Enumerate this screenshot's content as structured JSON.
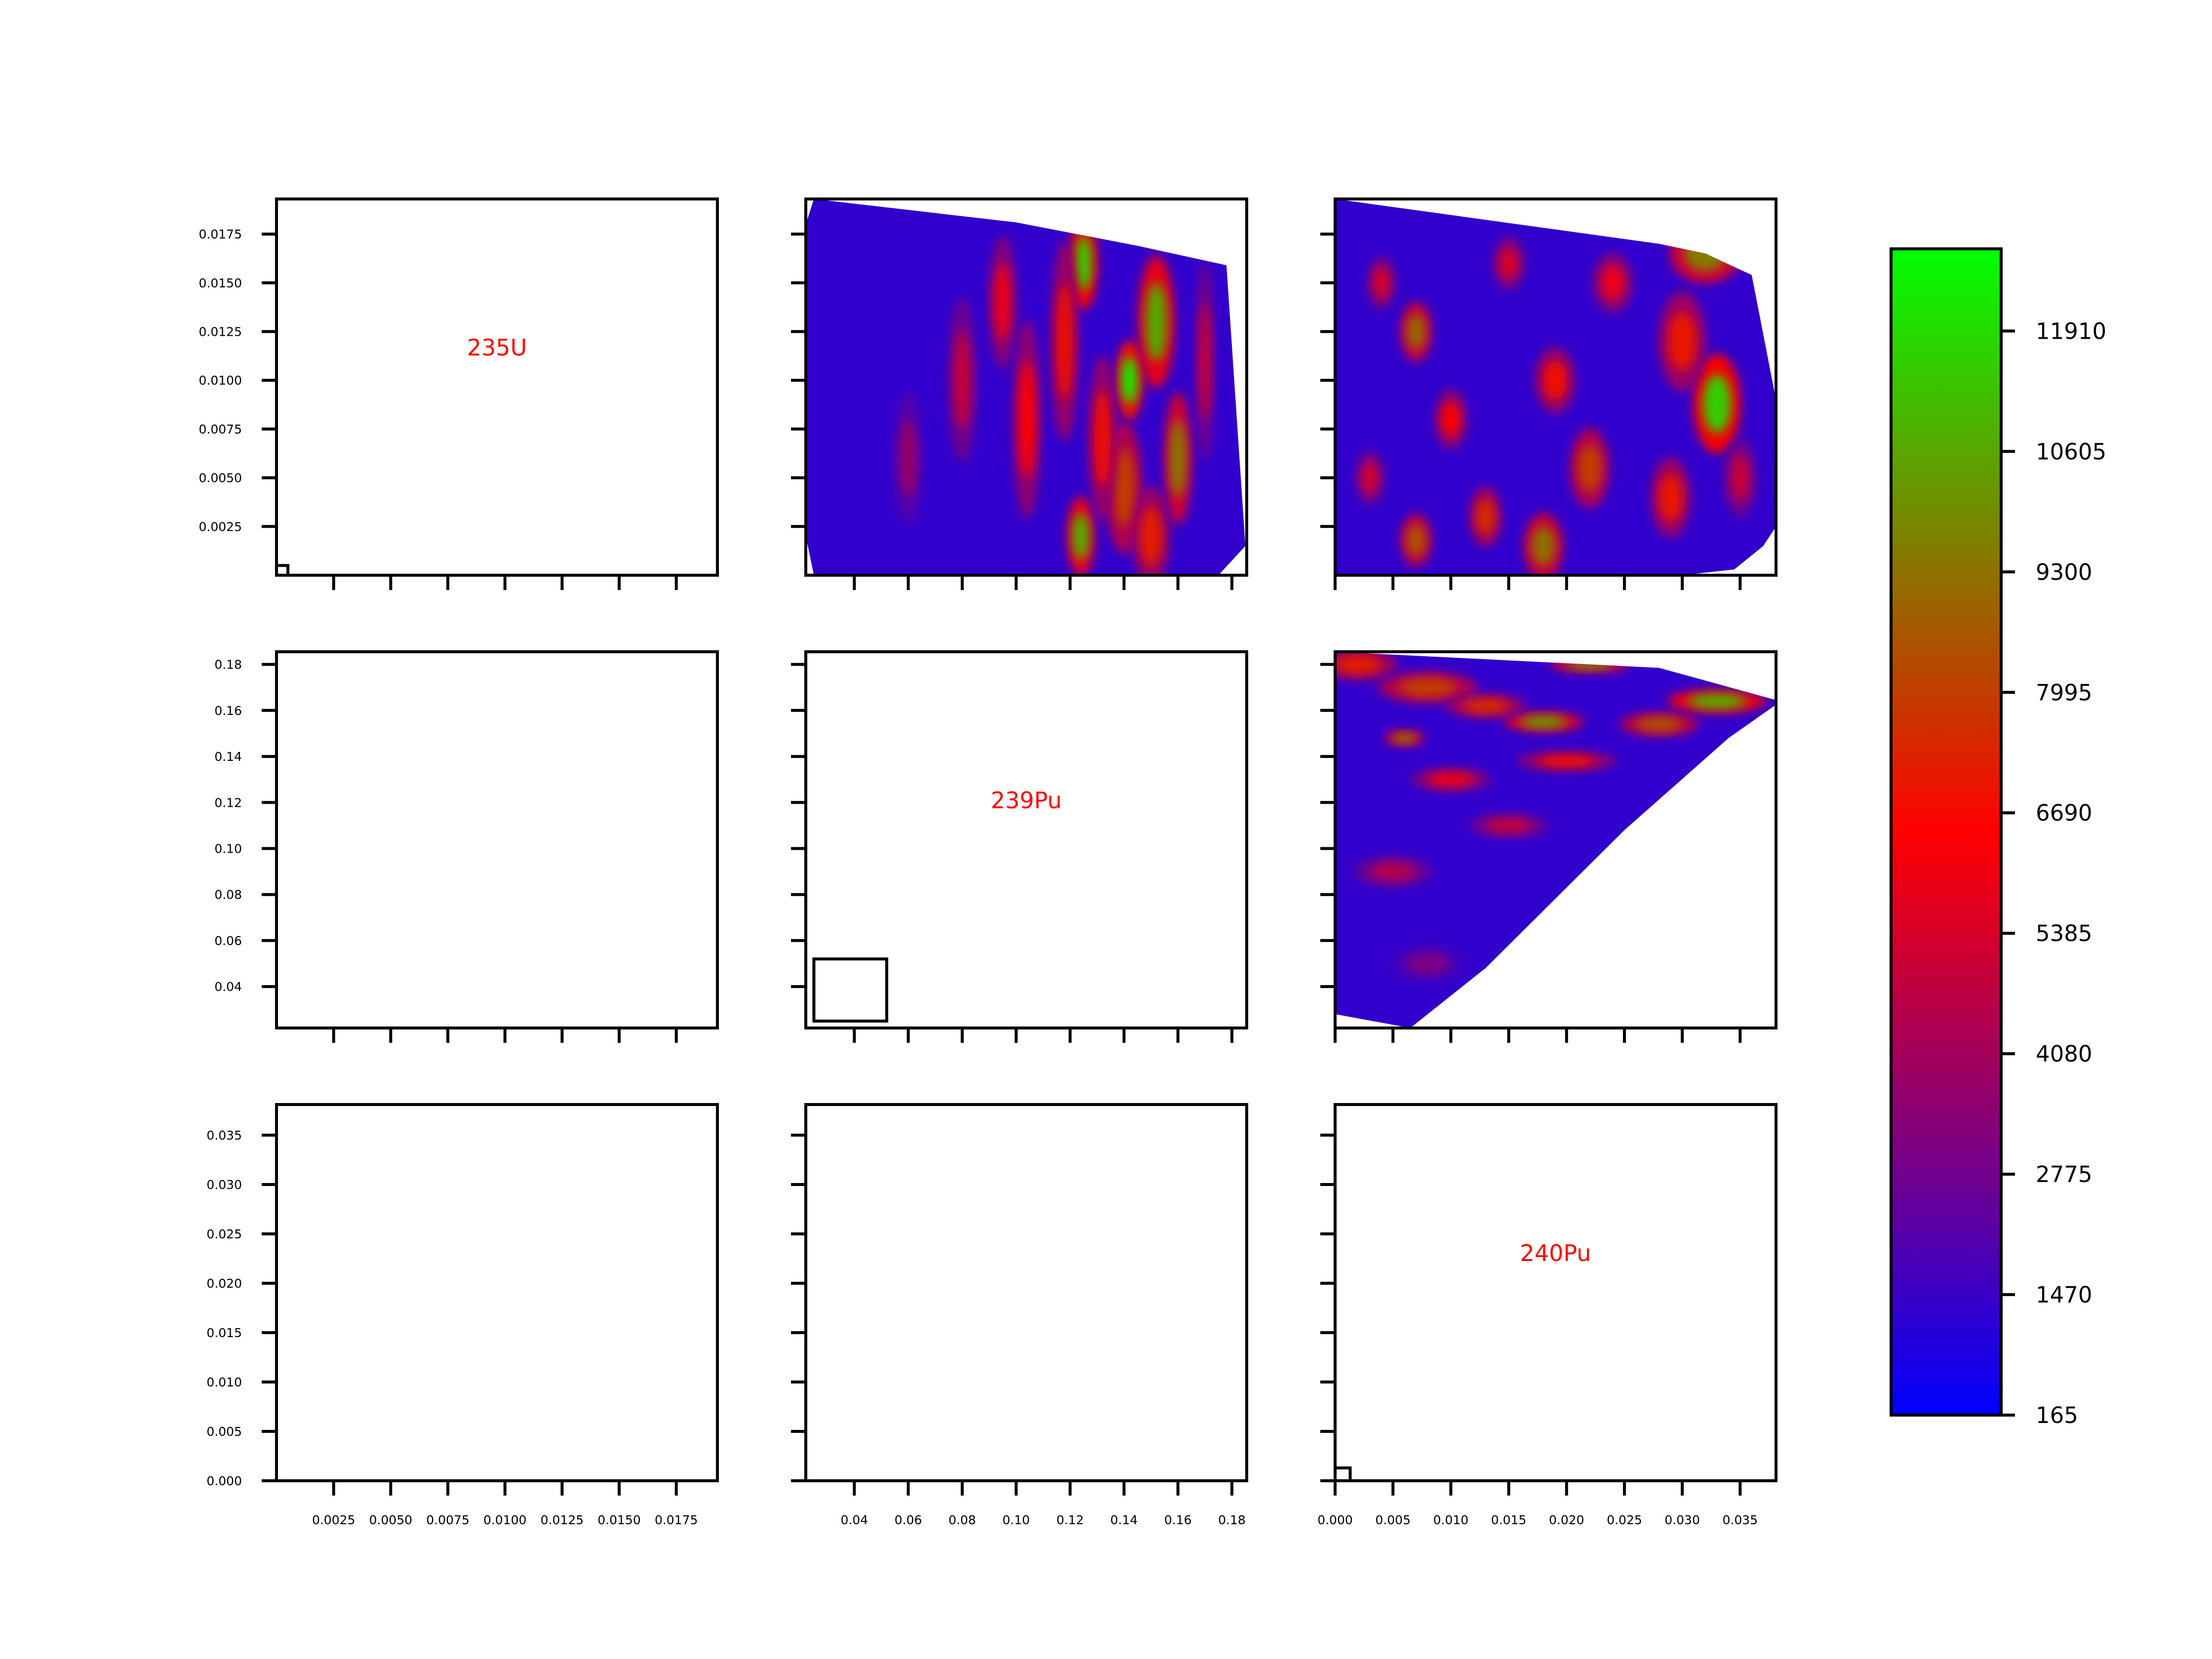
{
  "colors": {
    "axis": "#000000",
    "label": "#ff0000",
    "colormap": [
      "#0000ff",
      "#6f0090",
      "#ff0000",
      "#00ff00"
    ]
  },
  "chart_data": {
    "type": "pairplot-contour",
    "nuclides": [
      "235U",
      "239Pu",
      "240Pu"
    ],
    "axes": {
      "235U": {
        "range": [
          0.0,
          0.0193
        ],
        "ticks": [
          "0.0025",
          "0.0050",
          "0.0075",
          "0.0100",
          "0.0125",
          "0.0150",
          "0.0175"
        ],
        "tick_values": [
          0.0025,
          0.005,
          0.0075,
          0.01,
          0.0125,
          0.015,
          0.0175
        ]
      },
      "239Pu": {
        "range": [
          0.022,
          0.1855
        ],
        "ticks": [
          "0.04",
          "0.06",
          "0.08",
          "0.10",
          "0.12",
          "0.14",
          "0.16",
          "0.18"
        ],
        "tick_values": [
          0.04,
          0.06,
          0.08,
          0.1,
          0.12,
          0.14,
          0.16,
          0.18
        ]
      },
      "240Pu": {
        "range": [
          0.0,
          0.0381
        ],
        "ticks": [
          "0.000",
          "0.005",
          "0.010",
          "0.015",
          "0.020",
          "0.025",
          "0.030",
          "0.035"
        ],
        "tick_values": [
          0.0,
          0.005,
          0.01,
          0.015,
          0.02,
          0.025,
          0.03,
          0.035
        ]
      }
    },
    "diagonal": [
      {
        "row": 0,
        "col": 0,
        "label": "235U",
        "box": {
          "x": [
            0.0,
            0.0005
          ],
          "y": [
            0.0,
            0.0005
          ]
        }
      },
      {
        "row": 1,
        "col": 1,
        "label": "239Pu",
        "box": {
          "x": [
            0.025,
            0.052
          ],
          "y": [
            0.025,
            0.052
          ]
        }
      },
      {
        "row": 2,
        "col": 2,
        "label": "240Pu",
        "box": {
          "x": [
            0.0,
            0.0013
          ],
          "y": [
            0.0,
            0.0013
          ]
        }
      }
    ],
    "contour_panels": [
      {
        "row": 0,
        "col": 1,
        "x": "239Pu",
        "y": "235U",
        "hull": [
          [
            0.025,
            0.0193
          ],
          [
            0.1,
            0.0181
          ],
          [
            0.145,
            0.0169
          ],
          [
            0.178,
            0.0159
          ],
          [
            0.185,
            0.0015
          ],
          [
            0.175,
            0.0
          ],
          [
            0.025,
            0.0
          ],
          [
            0.022,
            0.002
          ],
          [
            0.022,
            0.018
          ]
        ],
        "hot_spots": [
          {
            "x": 0.142,
            "y": 0.01,
            "rx": 0.003,
            "ry": 0.0012,
            "level": 12200
          },
          {
            "x": 0.125,
            "y": 0.016,
            "rx": 0.003,
            "ry": 0.0014,
            "level": 11500
          },
          {
            "x": 0.152,
            "y": 0.013,
            "rx": 0.004,
            "ry": 0.002,
            "level": 10600
          },
          {
            "x": 0.124,
            "y": 0.002,
            "rx": 0.003,
            "ry": 0.0012,
            "level": 10900
          },
          {
            "x": 0.14,
            "y": 0.0045,
            "rx": 0.004,
            "ry": 0.002,
            "level": 8000
          },
          {
            "x": 0.118,
            "y": 0.012,
            "rx": 0.003,
            "ry": 0.003,
            "level": 6900
          },
          {
            "x": 0.16,
            "y": 0.006,
            "rx": 0.003,
            "ry": 0.002,
            "level": 9500
          },
          {
            "x": 0.104,
            "y": 0.008,
            "rx": 0.003,
            "ry": 0.003,
            "level": 6500
          },
          {
            "x": 0.095,
            "y": 0.014,
            "rx": 0.003,
            "ry": 0.002,
            "level": 6000
          },
          {
            "x": 0.15,
            "y": 0.002,
            "rx": 0.004,
            "ry": 0.0015,
            "level": 7200
          },
          {
            "x": 0.08,
            "y": 0.01,
            "rx": 0.003,
            "ry": 0.0025,
            "level": 5000
          },
          {
            "x": 0.132,
            "y": 0.007,
            "rx": 0.003,
            "ry": 0.0025,
            "level": 6800
          },
          {
            "x": 0.17,
            "y": 0.011,
            "rx": 0.002,
            "ry": 0.003,
            "level": 5200
          },
          {
            "x": 0.06,
            "y": 0.006,
            "rx": 0.003,
            "ry": 0.002,
            "level": 3800
          }
        ]
      },
      {
        "row": 0,
        "col": 2,
        "x": "240Pu",
        "y": "235U",
        "hull": [
          [
            0.0,
            0.0193
          ],
          [
            0.028,
            0.017
          ],
          [
            0.032,
            0.0165
          ],
          [
            0.036,
            0.0154
          ],
          [
            0.0381,
            0.009
          ],
          [
            0.0381,
            0.0025
          ],
          [
            0.037,
            0.0015
          ],
          [
            0.0345,
            0.0003
          ],
          [
            0.03,
            0.0
          ],
          [
            0.0,
            0.0
          ]
        ],
        "hot_spots": [
          {
            "x": 0.033,
            "y": 0.0088,
            "rx": 0.0012,
            "ry": 0.0015,
            "level": 11500
          },
          {
            "x": 0.032,
            "y": 0.0165,
            "rx": 0.0018,
            "ry": 0.0009,
            "level": 9500
          },
          {
            "x": 0.007,
            "y": 0.0125,
            "rx": 0.0008,
            "ry": 0.0009,
            "level": 9000
          },
          {
            "x": 0.018,
            "y": 0.0015,
            "rx": 0.001,
            "ry": 0.001,
            "level": 9200
          },
          {
            "x": 0.007,
            "y": 0.0018,
            "rx": 0.0008,
            "ry": 0.0008,
            "level": 8500
          },
          {
            "x": 0.022,
            "y": 0.0055,
            "rx": 0.001,
            "ry": 0.0012,
            "level": 8000
          },
          {
            "x": 0.013,
            "y": 0.003,
            "rx": 0.0008,
            "ry": 0.0009,
            "level": 7500
          },
          {
            "x": 0.03,
            "y": 0.012,
            "rx": 0.0012,
            "ry": 0.0015,
            "level": 7000
          },
          {
            "x": 0.019,
            "y": 0.01,
            "rx": 0.001,
            "ry": 0.001,
            "level": 6800
          },
          {
            "x": 0.01,
            "y": 0.008,
            "rx": 0.0008,
            "ry": 0.0009,
            "level": 6500
          },
          {
            "x": 0.029,
            "y": 0.004,
            "rx": 0.001,
            "ry": 0.0012,
            "level": 7000
          },
          {
            "x": 0.004,
            "y": 0.015,
            "rx": 0.0007,
            "ry": 0.0008,
            "level": 5500
          },
          {
            "x": 0.024,
            "y": 0.015,
            "rx": 0.001,
            "ry": 0.0009,
            "level": 6000
          },
          {
            "x": 0.015,
            "y": 0.016,
            "rx": 0.0008,
            "ry": 0.0008,
            "level": 5500
          },
          {
            "x": 0.003,
            "y": 0.005,
            "rx": 0.0007,
            "ry": 0.0008,
            "level": 5400
          },
          {
            "x": 0.035,
            "y": 0.005,
            "rx": 0.0008,
            "ry": 0.0012,
            "level": 5000
          }
        ]
      },
      {
        "row": 1,
        "col": 2,
        "x": "240Pu",
        "y": "239Pu",
        "hull": [
          [
            0.0,
            0.1855
          ],
          [
            0.028,
            0.1785
          ],
          [
            0.0381,
            0.1645
          ],
          [
            0.0381,
            0.1625
          ],
          [
            0.034,
            0.148
          ],
          [
            0.025,
            0.108
          ],
          [
            0.013,
            0.048
          ],
          [
            0.0065,
            0.022
          ],
          [
            0.0,
            0.028
          ]
        ],
        "hot_spots": [
          {
            "x": 0.033,
            "y": 0.164,
            "rx": 0.0025,
            "ry": 0.003,
            "level": 11000
          },
          {
            "x": 0.018,
            "y": 0.155,
            "rx": 0.002,
            "ry": 0.0025,
            "level": 10500
          },
          {
            "x": 0.022,
            "y": 0.18,
            "rx": 0.002,
            "ry": 0.002,
            "level": 9800
          },
          {
            "x": 0.008,
            "y": 0.17,
            "rx": 0.0025,
            "ry": 0.004,
            "level": 8000
          },
          {
            "x": 0.028,
            "y": 0.154,
            "rx": 0.002,
            "ry": 0.003,
            "level": 8500
          },
          {
            "x": 0.013,
            "y": 0.162,
            "rx": 0.002,
            "ry": 0.003,
            "level": 7500
          },
          {
            "x": 0.006,
            "y": 0.148,
            "rx": 0.001,
            "ry": 0.002,
            "level": 9500
          },
          {
            "x": 0.002,
            "y": 0.18,
            "rx": 0.002,
            "ry": 0.004,
            "level": 7200
          },
          {
            "x": 0.02,
            "y": 0.138,
            "rx": 0.0025,
            "ry": 0.0025,
            "level": 6800
          },
          {
            "x": 0.01,
            "y": 0.13,
            "rx": 0.002,
            "ry": 0.003,
            "level": 6000
          },
          {
            "x": 0.015,
            "y": 0.11,
            "rx": 0.002,
            "ry": 0.003,
            "level": 5000
          },
          {
            "x": 0.005,
            "y": 0.09,
            "rx": 0.002,
            "ry": 0.004,
            "level": 4500
          },
          {
            "x": 0.008,
            "y": 0.05,
            "rx": 0.002,
            "ry": 0.005,
            "level": 3000
          }
        ]
      }
    ],
    "colorbar": {
      "vmin": 165,
      "vmax": 12800,
      "ticks": [
        "165",
        "1470",
        "2775",
        "4080",
        "5385",
        "6690",
        "7995",
        "9300",
        "10605",
        "11910"
      ],
      "tick_values": [
        165,
        1470,
        2775,
        4080,
        5385,
        6690,
        7995,
        9300,
        10605,
        11910
      ]
    }
  }
}
